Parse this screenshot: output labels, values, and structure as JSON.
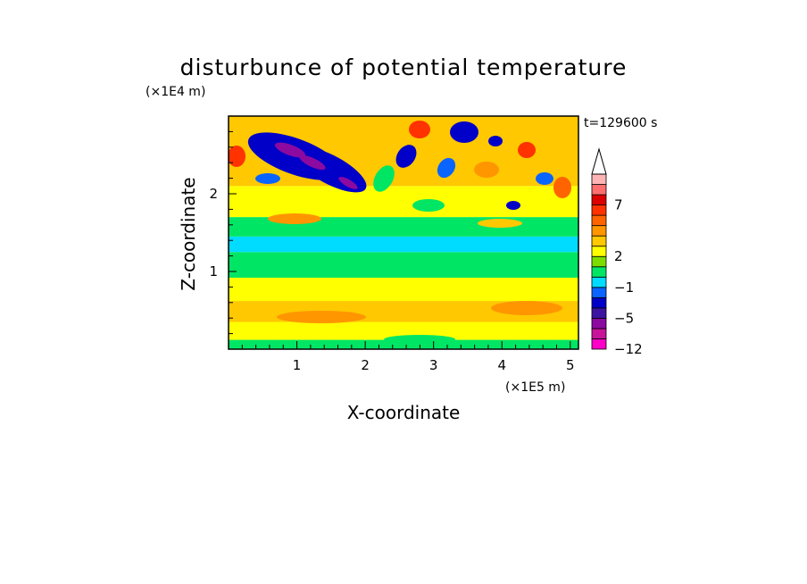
{
  "chart_data": {
    "type": "heatmap",
    "title": "disturbunce of potential temperature",
    "time_label": "t=129600 s",
    "xlabel": "X-coordinate",
    "ylabel": "Z-coordinate",
    "x_unit": "(×1E5 m)",
    "y_unit": "(×1E4 m)",
    "xlim": [
      0,
      5.12
    ],
    "ylim": [
      0,
      3.0
    ],
    "x_ticks": [
      {
        "value": 1,
        "label": "1"
      },
      {
        "value": 2,
        "label": "2"
      },
      {
        "value": 3,
        "label": "3"
      },
      {
        "value": 4,
        "label": "4"
      },
      {
        "value": 5,
        "label": "5"
      }
    ],
    "y_ticks": [
      {
        "value": 1,
        "label": "1"
      },
      {
        "value": 2,
        "label": "2"
      }
    ],
    "colorbar": {
      "levels": [
        {
          "color": "#ff00c8"
        },
        {
          "color": "#c8149b"
        },
        {
          "color": "#8c0aa0"
        },
        {
          "color": "#3c14a0"
        },
        {
          "color": "#0000c8"
        },
        {
          "color": "#0a64ff"
        },
        {
          "color": "#00dcff"
        },
        {
          "color": "#00e664"
        },
        {
          "color": "#7ddc00"
        },
        {
          "color": "#ffff00"
        },
        {
          "color": "#ffc800"
        },
        {
          "color": "#ff9600"
        },
        {
          "color": "#ff6400"
        },
        {
          "color": "#ff3200"
        },
        {
          "color": "#dc0000"
        },
        {
          "color": "#ff6e6e"
        },
        {
          "color": "#ffb4b4"
        }
      ],
      "labels": [
        "7",
        "2",
        "−1",
        "−5",
        "−12"
      ],
      "top_color": "#ffffff"
    },
    "field_bands": [
      {
        "z": [
          0.0,
          0.12
        ],
        "level": "#00e664"
      },
      {
        "z": [
          0.12,
          0.35
        ],
        "level": "#ffff00"
      },
      {
        "z": [
          0.35,
          0.62
        ],
        "level": "#ffc800"
      },
      {
        "z": [
          0.62,
          0.92
        ],
        "level": "#ffff00"
      },
      {
        "z": [
          0.92,
          1.25
        ],
        "level": "#00e664"
      },
      {
        "z": [
          1.25,
          1.45
        ],
        "level": "#00dcff"
      },
      {
        "z": [
          1.45,
          1.7
        ],
        "level": "#00e664"
      },
      {
        "z": [
          1.7,
          2.1
        ],
        "level": "#ffff00"
      },
      {
        "z": [
          2.1,
          3.0
        ],
        "level": "#ffc800"
      }
    ]
  }
}
